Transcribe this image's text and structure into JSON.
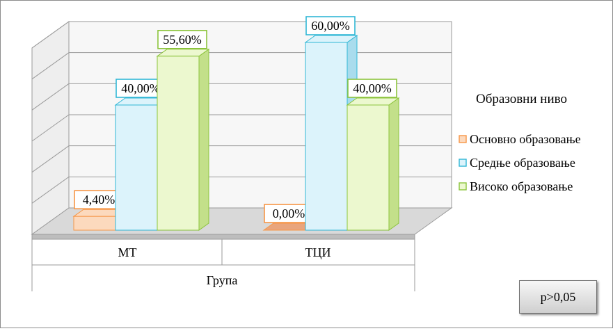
{
  "chart_data": {
    "type": "bar",
    "categories": [
      "МТ",
      "ТЦИ"
    ],
    "xlabel": "Група",
    "ylabel": "",
    "ylim": [
      0,
      60
    ],
    "series": [
      {
        "name": "Основно образовање",
        "values": [
          4.4,
          0.0
        ],
        "labels": [
          "4,40%",
          "0,00%"
        ]
      },
      {
        "name": "Средње образовање",
        "values": [
          40.0,
          60.0
        ],
        "labels": [
          "40,00%",
          "60,00%"
        ]
      },
      {
        "name": "Високо образовање",
        "values": [
          55.6,
          40.0
        ],
        "labels": [
          "55,60%",
          "40,00%"
        ]
      }
    ],
    "legend_title": "Образовни ниво",
    "legend_position": "right",
    "grid": true,
    "colors": {
      "Основно образовање": {
        "front": "#fcd9bd",
        "side": "#f2b68a",
        "border": "#f79646"
      },
      "Средње образовање": {
        "front": "#dcf3fb",
        "side": "#a9dced",
        "border": "#31b7d6"
      },
      "Високо образовање": {
        "front": "#ecf8cf",
        "side": "#c3e08a",
        "border": "#8cc43c"
      }
    }
  },
  "annotation": {
    "p_value": "p>0,05"
  }
}
